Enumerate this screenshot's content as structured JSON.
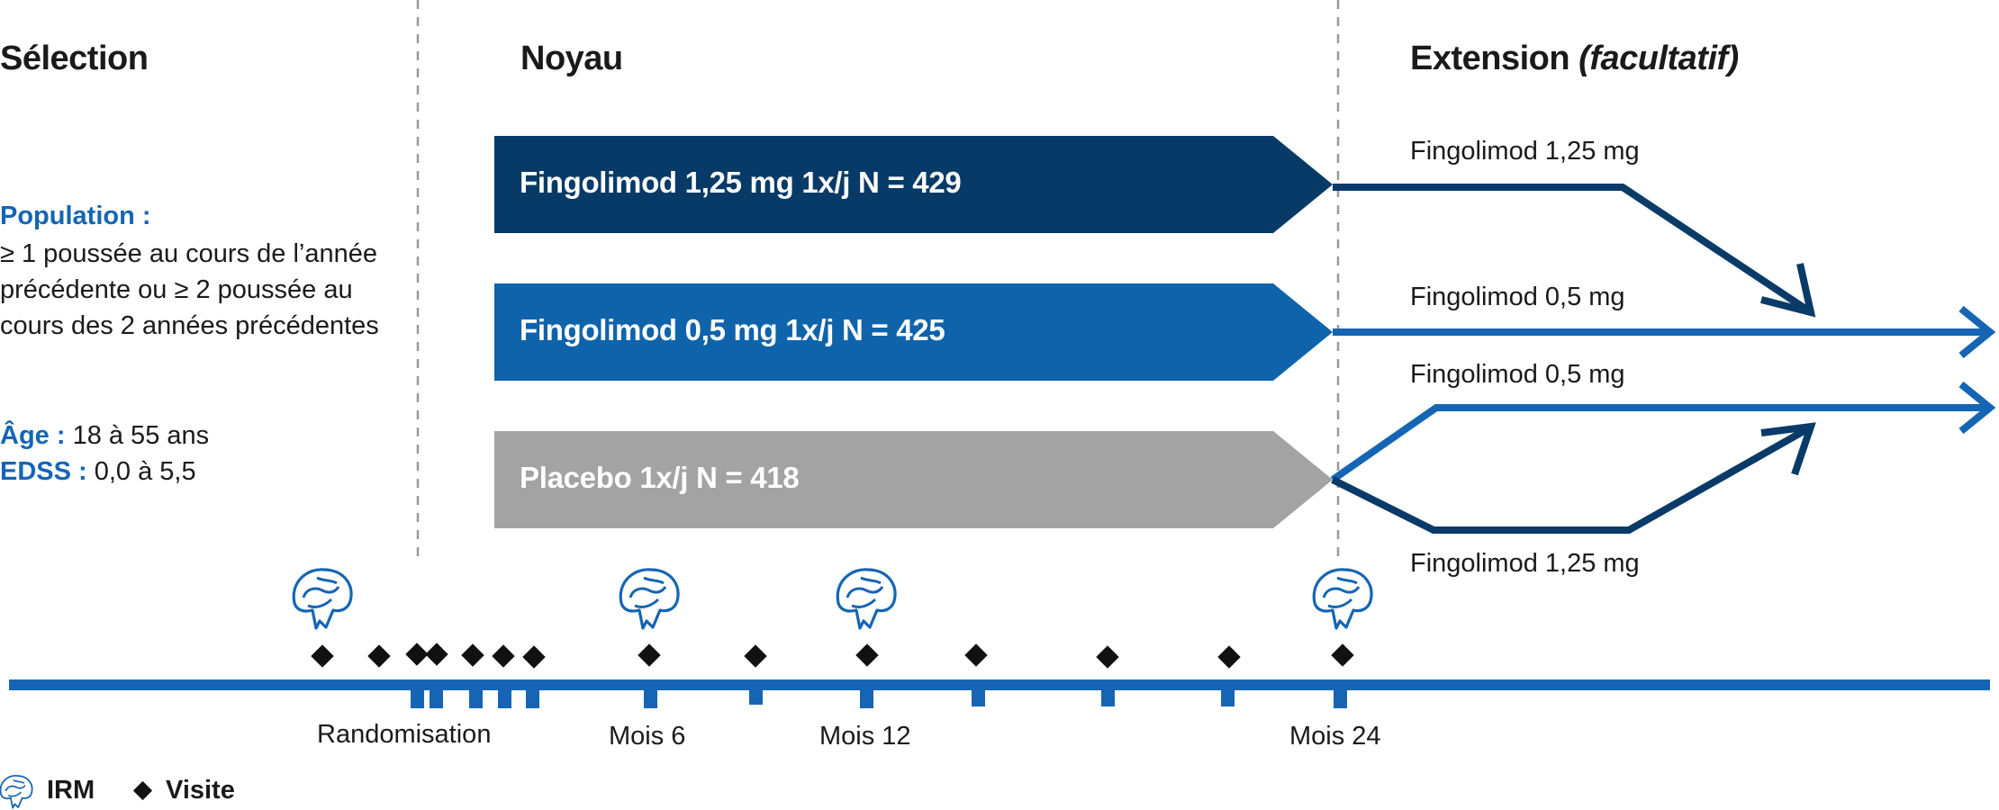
{
  "sections": {
    "selection": "Sélection",
    "core": "Noyau",
    "extension": "Extension",
    "extension_note": "(facultatif)"
  },
  "population": {
    "label": "Population :",
    "text": "≥ 1 poussée au cours de l’année précédente ou ≥ 2 poussée au cours des 2 années précédentes",
    "age_label": "Âge :",
    "age_value": "18 à 55 ans",
    "edss_label": "EDSS :",
    "edss_value": "0,0 à 5,5"
  },
  "arms": [
    {
      "label": "Fingolimod 1,25 mg 1x/j N = 429",
      "color": "#073a67"
    },
    {
      "label": "Fingolimod 0,5 mg 1x/j N = 425",
      "color": "#0f63ab"
    },
    {
      "label": "Placebo 1x/j N = 418",
      "color": "#a3a3a3"
    }
  ],
  "extension_arms": {
    "from_high": "Fingolimod 1,25 mg",
    "from_low": "Fingolimod 0,5 mg",
    "placebo_to_low": "Fingolimod 0,5 mg",
    "placebo_to_high": "Fingolimod 1,25 mg"
  },
  "timeline": {
    "randomisation": "Randomisation",
    "month6": "Mois 6",
    "month12": "Mois 12",
    "month24": "Mois 24",
    "line_color": "#1565b4"
  },
  "legend": {
    "mri": "IRM",
    "visit": "Visite"
  }
}
